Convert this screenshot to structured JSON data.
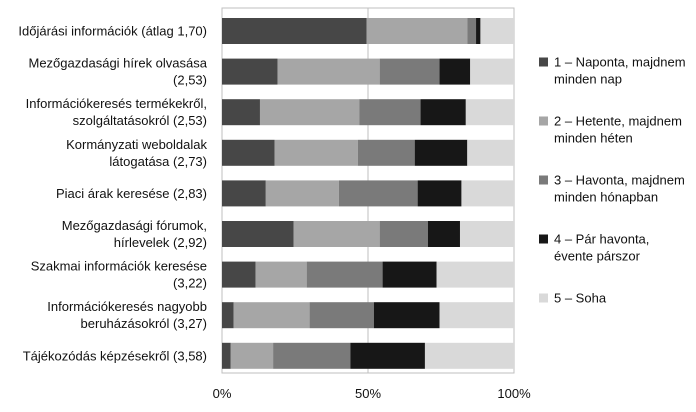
{
  "chart_data": {
    "type": "bar",
    "orientation": "horizontal",
    "stacked": "percent",
    "categories": [
      [
        "Időjárási információk (átlag 1,70)"
      ],
      [
        "Mezőgazdasági hírek olvasása",
        "(2,53)"
      ],
      [
        "Információkeresés termékekről,",
        "szolgáltatásokról (2,53)"
      ],
      [
        "Kormányzati weboldalak",
        "látogatása (2,73)"
      ],
      [
        "Piaci árak keresése (2,83)"
      ],
      [
        "Mezőgazdasági fórumok,",
        "hírlevelek (2,92)"
      ],
      [
        "Szakmai információk keresése",
        "(3,22)"
      ],
      [
        "Információkeresés nagyobb",
        "beruházásokról (3,27)"
      ],
      [
        "Tájékozódás képzésekről (3,58)"
      ]
    ],
    "series": [
      {
        "name": [
          "1 – Naponta, majdnem",
          "minden nap"
        ],
        "color": "#474747",
        "values": [
          49.5,
          19,
          13,
          18,
          15,
          24.5,
          11.5,
          4,
          3
        ]
      },
      {
        "name": [
          "2 – Hetente, majdnem",
          "minden héten"
        ],
        "color": "#a6a6a6",
        "values": [
          34.5,
          35,
          34,
          28.5,
          25,
          29.5,
          17.5,
          26,
          14.5
        ]
      },
      {
        "name": [
          "3 – Havonta, majdnem",
          "minden hónapban"
        ],
        "color": "#7a7a7a",
        "values": [
          3,
          20.5,
          21,
          19.5,
          27,
          16.5,
          26,
          22,
          26.5
        ]
      },
      {
        "name": [
          "4 – Pár havonta,",
          "évente párszor"
        ],
        "color": "#171717",
        "values": [
          1.5,
          10.5,
          15.5,
          18,
          15,
          11,
          18.5,
          22.5,
          25.5
        ]
      },
      {
        "name": [
          "5 – Soha"
        ],
        "color": "#d9d9d9",
        "values": [
          11.5,
          15,
          16.5,
          16,
          18,
          18.5,
          26.5,
          25.5,
          30.5
        ]
      }
    ],
    "xlim": [
      0,
      100
    ],
    "xticks": [
      {
        "value": 0,
        "label": "0%"
      },
      {
        "value": 50,
        "label": "50%"
      },
      {
        "value": 100,
        "label": "100%"
      }
    ],
    "grid": {
      "vertical": true
    },
    "legend_position": "right"
  }
}
